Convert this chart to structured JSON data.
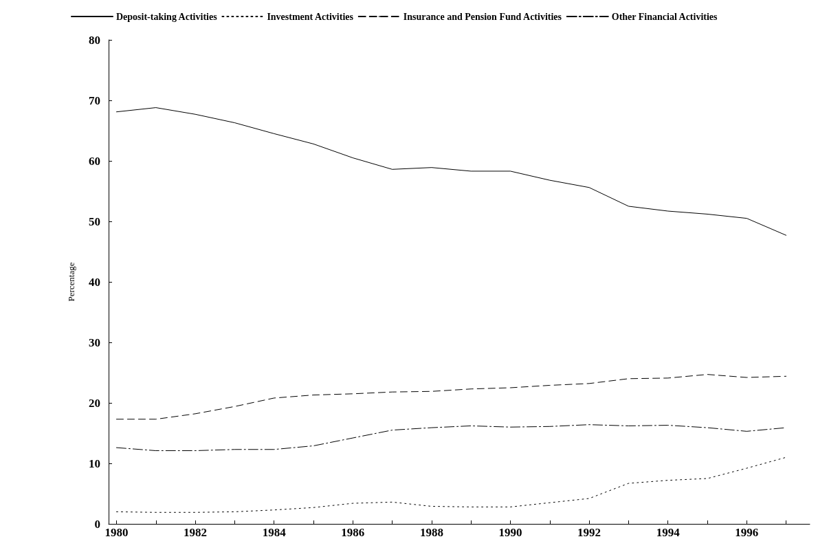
{
  "chart_data": {
    "type": "line",
    "ylabel": "Percentage",
    "x": [
      1980,
      1981,
      1982,
      1983,
      1984,
      1985,
      1986,
      1987,
      1988,
      1989,
      1990,
      1991,
      1992,
      1993,
      1994,
      1995,
      1996,
      1997
    ],
    "xlim": [
      1979.8,
      1997.6
    ],
    "xticks": [
      1980,
      {
        "value": 1981,
        "label": null
      },
      1982,
      {
        "value": 1983,
        "label": null
      },
      1984,
      {
        "value": 1985,
        "label": null
      },
      1986,
      {
        "value": 1987,
        "label": null
      },
      1988,
      {
        "value": 1989,
        "label": null
      },
      1990,
      {
        "value": 1991,
        "label": null
      },
      1992,
      {
        "value": 1993,
        "label": null
      },
      1994,
      {
        "value": 1995,
        "label": null
      },
      1996,
      {
        "value": 1997,
        "label": null
      }
    ],
    "ylim": [
      0,
      80
    ],
    "yticks": [
      0,
      10,
      20,
      30,
      40,
      50,
      60,
      70,
      80
    ],
    "grid": false,
    "legend": "top",
    "marker": "none",
    "series": [
      {
        "name": "Deposit-taking Activities",
        "color": "#000000",
        "line_style": "solid",
        "values": [
          68.1,
          68.8,
          67.7,
          66.3,
          64.5,
          62.8,
          60.5,
          58.6,
          58.9,
          58.3,
          58.3,
          56.8,
          55.6,
          52.5,
          51.7,
          51.2,
          50.5,
          47.7
        ]
      },
      {
        "name": "Investment Activities",
        "color": "#000000",
        "line_style": "dotted",
        "values": [
          2.0,
          1.9,
          1.9,
          2.0,
          2.3,
          2.7,
          3.4,
          3.6,
          2.9,
          2.8,
          2.8,
          3.5,
          4.2,
          6.7,
          7.2,
          7.5,
          9.2,
          11.0
        ]
      },
      {
        "name": "Insurance and Pension Fund Activities",
        "color": "#000000",
        "line_style": "dashed",
        "values": [
          17.3,
          17.3,
          18.2,
          19.4,
          20.8,
          21.3,
          21.5,
          21.8,
          21.9,
          22.3,
          22.5,
          22.9,
          23.2,
          24.0,
          24.1,
          24.7,
          24.2,
          24.4
        ]
      },
      {
        "name": "Other Financial Activities",
        "color": "#000000",
        "line_style": "dashdot",
        "values": [
          12.6,
          12.1,
          12.1,
          12.3,
          12.3,
          12.9,
          14.2,
          15.5,
          15.9,
          16.2,
          16.0,
          16.1,
          16.4,
          16.2,
          16.3,
          15.9,
          15.3,
          15.9
        ]
      }
    ]
  }
}
